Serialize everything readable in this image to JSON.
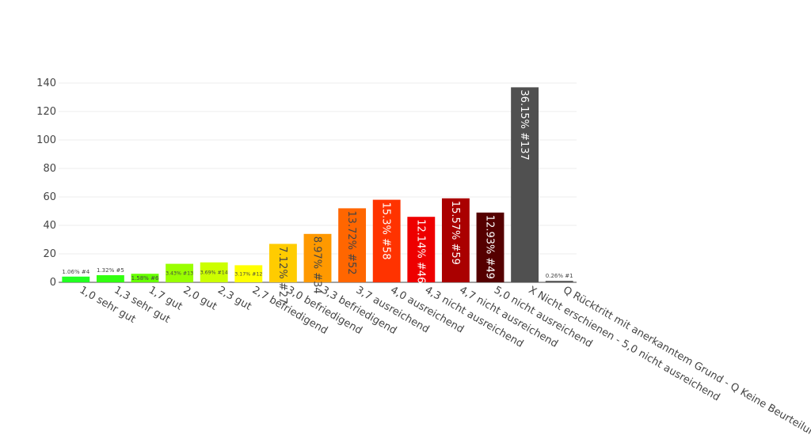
{
  "chart_data": {
    "type": "bar",
    "ylim": [
      0,
      145
    ],
    "yticks": [
      0,
      20,
      40,
      60,
      80,
      100,
      120,
      140
    ],
    "grid": true,
    "categories": [
      "1,0 sehr gut",
      "1,3 sehr gut",
      "1,7 gut",
      "2,0 gut",
      "2,3 gut",
      "2,7 befriedigend",
      "3,0 befriedigend",
      "3,3 befriedigend",
      "3,7 ausreichend",
      "4,0 ausreichend",
      "4,3 nicht ausreichend",
      "4,7 nicht ausreichend",
      "5,0 nicht ausreichend",
      "X Nicht erschienen - 5,0 nicht ausreichend",
      "Q Rücktritt mit anerkanntem Grund - Q Keine Beurteilung"
    ],
    "values": [
      4,
      5,
      6,
      13,
      14,
      12,
      27,
      34,
      52,
      58,
      46,
      59,
      49,
      137,
      1
    ],
    "data_labels": [
      "1.06% #4",
      "1.32% #5",
      "1.58% #6",
      "3.43% #13",
      "3.69% #14",
      "3.17% #12",
      "7.12% #27",
      "8.97% #34",
      "13.72% #52",
      "15.3% #58",
      "12.14% #46",
      "15.57% #59",
      "12.93% #49",
      "36.15% #137",
      "0.26% #1"
    ],
    "colors": [
      "#22ff22",
      "#33ff11",
      "#66ff00",
      "#99ff00",
      "#ccff00",
      "#ffff00",
      "#ffcc00",
      "#ff9900",
      "#ff6600",
      "#ff3300",
      "#ee0000",
      "#aa0000",
      "#550000",
      "#505050",
      "#505050"
    ],
    "label_colors": [
      "#444444",
      "#444444",
      "#444444",
      "#444444",
      "#444444",
      "#444444",
      "#444444",
      "#444444",
      "#444444",
      "#ffffff",
      "#ffffff",
      "#ffffff",
      "#ffffff",
      "#ffffff",
      "#444444"
    ]
  }
}
